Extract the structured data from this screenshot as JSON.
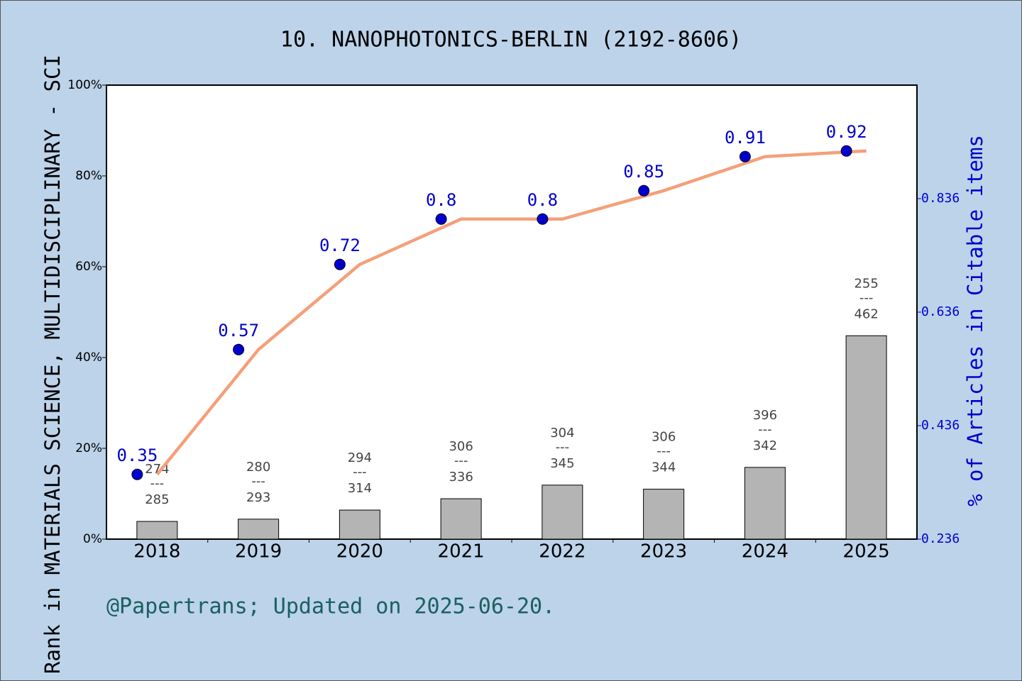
{
  "chart_data": {
    "type": "bar-line",
    "title": "10. NANOPHOTONICS-BERLIN (2192-8606)",
    "y_label": "Rank in MATERIALS SCIENCE, MULTIDISCIPLINARY - SCI",
    "y2_label": "% of Articles in Citable items",
    "footer": "@Papertrans; Updated on 2025-06-20.",
    "categories": [
      "2018",
      "2019",
      "2020",
      "2021",
      "2022",
      "2023",
      "2024",
      "2025"
    ],
    "ylim": [
      0,
      100
    ],
    "yticks": [
      {
        "value": 0,
        "label": "0%"
      },
      {
        "value": 20,
        "label": "20%"
      },
      {
        "value": 40,
        "label": "40%"
      },
      {
        "value": 60,
        "label": "60%"
      },
      {
        "value": 80,
        "label": "80%"
      },
      {
        "value": 100,
        "label": "100%"
      }
    ],
    "y2lim": [
      0.236,
      1.036
    ],
    "y2ticks": [
      0.236,
      0.436,
      0.636,
      0.836
    ],
    "series": [
      {
        "type": "bar",
        "color": "#b4b4b4",
        "values": [
          3.9,
          4.4,
          6.4,
          8.9,
          11.9,
          11.0,
          15.8,
          44.8
        ]
      },
      {
        "type": "line",
        "axis": "y2",
        "color": "#f4a07a",
        "marker_color": "#0000cc",
        "values": [
          0.35,
          0.57,
          0.72,
          0.8,
          0.8,
          0.85,
          0.91,
          0.92
        ]
      }
    ],
    "rank_labels": {
      "separator": "---",
      "top": [
        274,
        280,
        294,
        306,
        304,
        306,
        396,
        255
      ],
      "bottom": [
        285,
        293,
        314,
        336,
        345,
        344,
        342,
        462
      ]
    }
  }
}
